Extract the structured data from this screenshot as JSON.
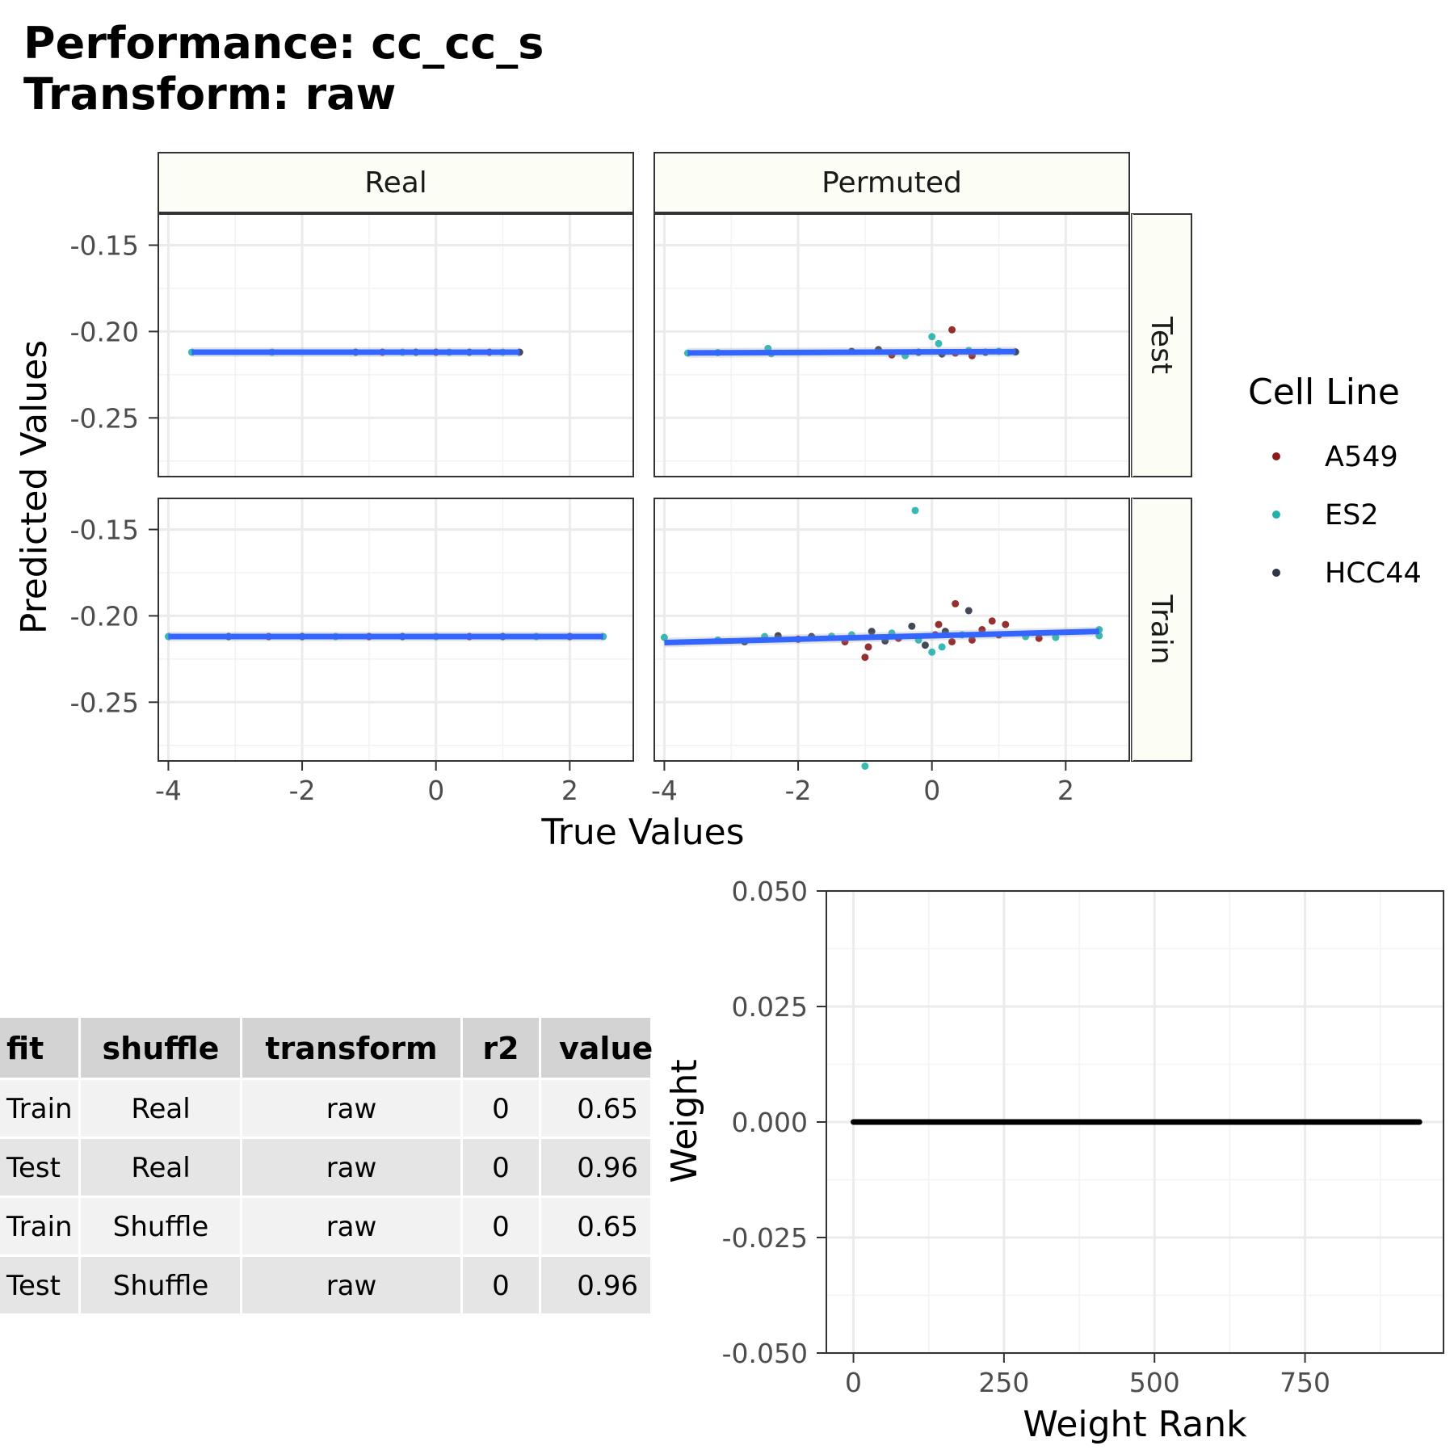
{
  "title": {
    "line1": "Performance: cc_cc_s",
    "line2": "Transform: raw"
  },
  "colors": {
    "A549": "#8B1A1A",
    "ES2": "#20B2AA",
    "HCC44": "#2F3547",
    "fit_line": "#3366FF",
    "strip_fill": "#FCFDF5",
    "grid": "#EBEBEB",
    "table_header": "#D3D3D3",
    "table_row_odd": "#F2F2F2",
    "table_row_even": "#E5E5E5"
  },
  "chart_data": [
    {
      "type": "scatter",
      "facet_columns": [
        "Real",
        "Permuted"
      ],
      "facet_rows": [
        "Test",
        "Train"
      ],
      "xlabel": "True Values",
      "ylabel": "Predicted Values",
      "xlim": [
        -4.15,
        2.95
      ],
      "ylim": [
        -0.284,
        -0.132
      ],
      "x_ticks": [
        -4,
        -2,
        0,
        2
      ],
      "x_tick_labels": [
        "-4",
        "-2",
        "0",
        "2"
      ],
      "y_ticks": [
        -0.15,
        -0.2,
        -0.25
      ],
      "y_tick_labels": [
        "-0.15",
        "-0.20",
        "-0.25"
      ],
      "legend": {
        "title": "Cell Line",
        "entries": [
          "A549",
          "ES2",
          "HCC44"
        ],
        "placement": "right"
      },
      "grid": true,
      "panels": [
        {
          "col": "Real",
          "row": "Test",
          "fit": {
            "x": [
              -3.65,
              1.25
            ],
            "y": [
              -0.212,
              -0.212
            ]
          },
          "points": [
            {
              "x": -3.65,
              "y": -0.212,
              "cell": "ES2"
            },
            {
              "x": -2.45,
              "y": -0.212,
              "cell": "ES2"
            },
            {
              "x": -1.2,
              "y": -0.212,
              "cell": "HCC44"
            },
            {
              "x": -0.8,
              "y": -0.212,
              "cell": "A549"
            },
            {
              "x": -0.5,
              "y": -0.212,
              "cell": "ES2"
            },
            {
              "x": -0.3,
              "y": -0.212,
              "cell": "HCC44"
            },
            {
              "x": 0.0,
              "y": -0.212,
              "cell": "A549"
            },
            {
              "x": 0.2,
              "y": -0.212,
              "cell": "ES2"
            },
            {
              "x": 0.5,
              "y": -0.212,
              "cell": "HCC44"
            },
            {
              "x": 0.8,
              "y": -0.212,
              "cell": "A549"
            },
            {
              "x": 1.0,
              "y": -0.212,
              "cell": "ES2"
            },
            {
              "x": 1.25,
              "y": -0.212,
              "cell": "HCC44"
            }
          ]
        },
        {
          "col": "Permuted",
          "row": "Test",
          "fit": {
            "x": [
              -3.65,
              1.25
            ],
            "y": [
              -0.2124,
              -0.2116
            ]
          },
          "points": [
            {
              "x": -3.65,
              "y": -0.2125,
              "cell": "ES2"
            },
            {
              "x": -3.2,
              "y": -0.2122,
              "cell": "ES2"
            },
            {
              "x": -2.45,
              "y": -0.2098,
              "cell": "ES2"
            },
            {
              "x": -2.4,
              "y": -0.2128,
              "cell": "ES2"
            },
            {
              "x": -1.2,
              "y": -0.2115,
              "cell": "HCC44"
            },
            {
              "x": -0.8,
              "y": -0.2105,
              "cell": "HCC44"
            },
            {
              "x": -0.6,
              "y": -0.2135,
              "cell": "A549"
            },
            {
              "x": -0.4,
              "y": -0.214,
              "cell": "ES2"
            },
            {
              "x": -0.2,
              "y": -0.212,
              "cell": "HCC44"
            },
            {
              "x": 0.0,
              "y": -0.203,
              "cell": "ES2"
            },
            {
              "x": 0.1,
              "y": -0.207,
              "cell": "ES2"
            },
            {
              "x": 0.15,
              "y": -0.213,
              "cell": "HCC44"
            },
            {
              "x": 0.3,
              "y": -0.199,
              "cell": "A549"
            },
            {
              "x": 0.35,
              "y": -0.2125,
              "cell": "A549"
            },
            {
              "x": 0.55,
              "y": -0.211,
              "cell": "ES2"
            },
            {
              "x": 0.6,
              "y": -0.214,
              "cell": "A549"
            },
            {
              "x": 0.8,
              "y": -0.212,
              "cell": "HCC44"
            },
            {
              "x": 1.0,
              "y": -0.2115,
              "cell": "ES2"
            },
            {
              "x": 1.25,
              "y": -0.2118,
              "cell": "HCC44"
            }
          ]
        },
        {
          "col": "Real",
          "row": "Train",
          "fit": {
            "x": [
              -4.0,
              2.5
            ],
            "y": [
              -0.212,
              -0.212
            ]
          },
          "points": [
            {
              "x": -4.0,
              "y": -0.212,
              "cell": "ES2"
            },
            {
              "x": -3.1,
              "y": -0.212,
              "cell": "HCC44"
            },
            {
              "x": -2.5,
              "y": -0.212,
              "cell": "A549"
            },
            {
              "x": -2.0,
              "y": -0.212,
              "cell": "HCC44"
            },
            {
              "x": -1.5,
              "y": -0.212,
              "cell": "ES2"
            },
            {
              "x": -1.0,
              "y": -0.212,
              "cell": "A549"
            },
            {
              "x": -0.5,
              "y": -0.212,
              "cell": "HCC44"
            },
            {
              "x": 0.0,
              "y": -0.212,
              "cell": "ES2"
            },
            {
              "x": 0.5,
              "y": -0.212,
              "cell": "A549"
            },
            {
              "x": 1.0,
              "y": -0.212,
              "cell": "HCC44"
            },
            {
              "x": 1.5,
              "y": -0.212,
              "cell": "ES2"
            },
            {
              "x": 2.0,
              "y": -0.212,
              "cell": "A549"
            },
            {
              "x": 2.5,
              "y": -0.212,
              "cell": "ES2"
            }
          ]
        },
        {
          "col": "Permuted",
          "row": "Train",
          "fit": {
            "x": [
              -4.0,
              2.5
            ],
            "y": [
              -0.2155,
              -0.209
            ]
          },
          "points": [
            {
              "x": -4.0,
              "y": -0.2125,
              "cell": "ES2"
            },
            {
              "x": -3.2,
              "y": -0.214,
              "cell": "ES2"
            },
            {
              "x": -2.8,
              "y": -0.215,
              "cell": "HCC44"
            },
            {
              "x": -2.5,
              "y": -0.212,
              "cell": "ES2"
            },
            {
              "x": -2.3,
              "y": -0.2115,
              "cell": "HCC44"
            },
            {
              "x": -2.0,
              "y": -0.2135,
              "cell": "A549"
            },
            {
              "x": -1.8,
              "y": -0.212,
              "cell": "HCC44"
            },
            {
              "x": -1.5,
              "y": -0.2118,
              "cell": "ES2"
            },
            {
              "x": -1.3,
              "y": -0.215,
              "cell": "A549"
            },
            {
              "x": -1.2,
              "y": -0.211,
              "cell": "ES2"
            },
            {
              "x": -1.0,
              "y": -0.224,
              "cell": "A549"
            },
            {
              "x": -0.95,
              "y": -0.218,
              "cell": "A549"
            },
            {
              "x": -0.9,
              "y": -0.209,
              "cell": "HCC44"
            },
            {
              "x": -0.7,
              "y": -0.2145,
              "cell": "HCC44"
            },
            {
              "x": -0.6,
              "y": -0.21,
              "cell": "ES2"
            },
            {
              "x": -0.5,
              "y": -0.213,
              "cell": "A549"
            },
            {
              "x": -0.3,
              "y": -0.206,
              "cell": "HCC44"
            },
            {
              "x": -0.2,
              "y": -0.214,
              "cell": "ES2"
            },
            {
              "x": -0.1,
              "y": -0.217,
              "cell": "HCC44"
            },
            {
              "x": 0.0,
              "y": -0.221,
              "cell": "ES2"
            },
            {
              "x": 0.05,
              "y": -0.211,
              "cell": "A549"
            },
            {
              "x": 0.1,
              "y": -0.205,
              "cell": "A549"
            },
            {
              "x": 0.15,
              "y": -0.218,
              "cell": "ES2"
            },
            {
              "x": 0.2,
              "y": -0.209,
              "cell": "HCC44"
            },
            {
              "x": 0.3,
              "y": -0.215,
              "cell": "A549"
            },
            {
              "x": 0.35,
              "y": -0.193,
              "cell": "A549"
            },
            {
              "x": 0.45,
              "y": -0.211,
              "cell": "ES2"
            },
            {
              "x": 0.55,
              "y": -0.197,
              "cell": "HCC44"
            },
            {
              "x": 0.6,
              "y": -0.214,
              "cell": "A549"
            },
            {
              "x": 0.75,
              "y": -0.208,
              "cell": "A549"
            },
            {
              "x": 0.9,
              "y": -0.203,
              "cell": "A549"
            },
            {
              "x": 1.0,
              "y": -0.211,
              "cell": "A549"
            },
            {
              "x": 1.1,
              "y": -0.205,
              "cell": "A549"
            },
            {
              "x": 1.4,
              "y": -0.212,
              "cell": "ES2"
            },
            {
              "x": 1.6,
              "y": -0.213,
              "cell": "A549"
            },
            {
              "x": 1.85,
              "y": -0.2125,
              "cell": "ES2"
            },
            {
              "x": 2.5,
              "y": -0.208,
              "cell": "ES2"
            },
            {
              "x": 2.5,
              "y": -0.2115,
              "cell": "ES2"
            },
            {
              "x": -0.25,
              "y": -0.139,
              "cell": "ES2"
            },
            {
              "x": -1.0,
              "y": -0.287,
              "cell": "ES2"
            }
          ]
        }
      ]
    },
    {
      "type": "table",
      "columns": [
        "fit",
        "shuffle",
        "transform",
        "r2",
        "value"
      ],
      "rows": [
        [
          "Train",
          "Real",
          "raw",
          "0",
          "0.65"
        ],
        [
          "Test",
          "Real",
          "raw",
          "0",
          "0.96"
        ],
        [
          "Train",
          "Shuffle",
          "raw",
          "0",
          "0.65"
        ],
        [
          "Test",
          "Shuffle",
          "raw",
          "0",
          "0.96"
        ]
      ]
    },
    {
      "type": "line",
      "xlabel": "Weight Rank",
      "ylabel": "Weight",
      "xlim": [
        -45,
        980
      ],
      "ylim": [
        -0.05,
        0.05
      ],
      "x_ticks": [
        0,
        250,
        500,
        750
      ],
      "x_tick_labels": [
        "0",
        "250",
        "500",
        "750"
      ],
      "y_ticks": [
        0.05,
        0.025,
        0.0,
        -0.025,
        -0.05
      ],
      "y_tick_labels": [
        "0.050",
        "0.025",
        "0.000",
        "-0.025",
        "-0.050"
      ],
      "grid": true,
      "series": [
        {
          "x": [
            0,
            940
          ],
          "y": [
            0.0,
            0.0
          ]
        }
      ]
    }
  ]
}
